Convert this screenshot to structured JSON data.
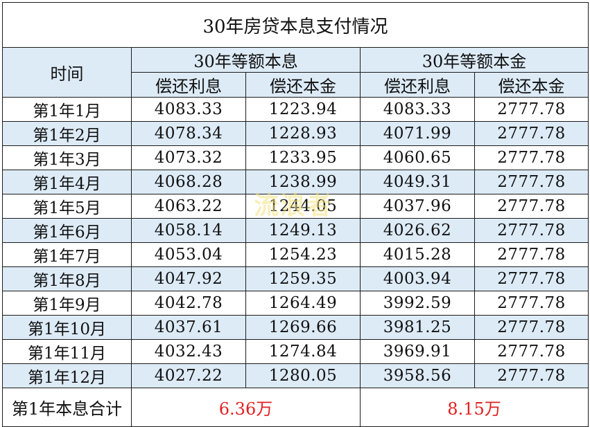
{
  "title": "30年房贷本息支付情况",
  "header": {
    "time": "时间",
    "group_equal_installment": "30年等额本息",
    "group_equal_principal": "30年等额本金",
    "interest": "偿还利息",
    "principal": "偿还本金"
  },
  "rows": [
    {
      "month": "第1年1月",
      "ei_interest": "4083.33",
      "ei_principal": "1223.94",
      "ep_interest": "4083.33",
      "ep_principal": "2777.78"
    },
    {
      "month": "第1年2月",
      "ei_interest": "4078.34",
      "ei_principal": "1228.93",
      "ep_interest": "4071.99",
      "ep_principal": "2777.78"
    },
    {
      "month": "第1年3月",
      "ei_interest": "4073.32",
      "ei_principal": "1233.95",
      "ep_interest": "4060.65",
      "ep_principal": "2777.78"
    },
    {
      "month": "第1年4月",
      "ei_interest": "4068.28",
      "ei_principal": "1238.99",
      "ep_interest": "4049.31",
      "ep_principal": "2777.78"
    },
    {
      "month": "第1年5月",
      "ei_interest": "4063.22",
      "ei_principal": "1244.05",
      "ep_interest": "4037.96",
      "ep_principal": "2777.78"
    },
    {
      "month": "第1年6月",
      "ei_interest": "4058.14",
      "ei_principal": "1249.13",
      "ep_interest": "4026.62",
      "ep_principal": "2777.78"
    },
    {
      "month": "第1年7月",
      "ei_interest": "4053.04",
      "ei_principal": "1254.23",
      "ep_interest": "4015.28",
      "ep_principal": "2777.78"
    },
    {
      "month": "第1年8月",
      "ei_interest": "4047.92",
      "ei_principal": "1259.35",
      "ep_interest": "4003.94",
      "ep_principal": "2777.78"
    },
    {
      "month": "第1年9月",
      "ei_interest": "4042.78",
      "ei_principal": "1264.49",
      "ep_interest": "3992.59",
      "ep_principal": "2777.78"
    },
    {
      "month": "第1年10月",
      "ei_interest": "4037.61",
      "ei_principal": "1269.66",
      "ep_interest": "3981.25",
      "ep_principal": "2777.78"
    },
    {
      "month": "第1年11月",
      "ei_interest": "4032.43",
      "ei_principal": "1274.84",
      "ep_interest": "3969.91",
      "ep_principal": "2777.78"
    },
    {
      "month": "第1年12月",
      "ei_interest": "4027.22",
      "ei_principal": "1280.05",
      "ep_interest": "3958.56",
      "ep_principal": "2777.78"
    }
  ],
  "total": {
    "label": "第1年本息合计",
    "equal_installment": "6.36万",
    "equal_principal": "8.15万"
  },
  "watermark": "流浪者",
  "colors": {
    "header_band": "#ddebf7",
    "total_value": "#e02020",
    "border": "#1a1a1a"
  }
}
